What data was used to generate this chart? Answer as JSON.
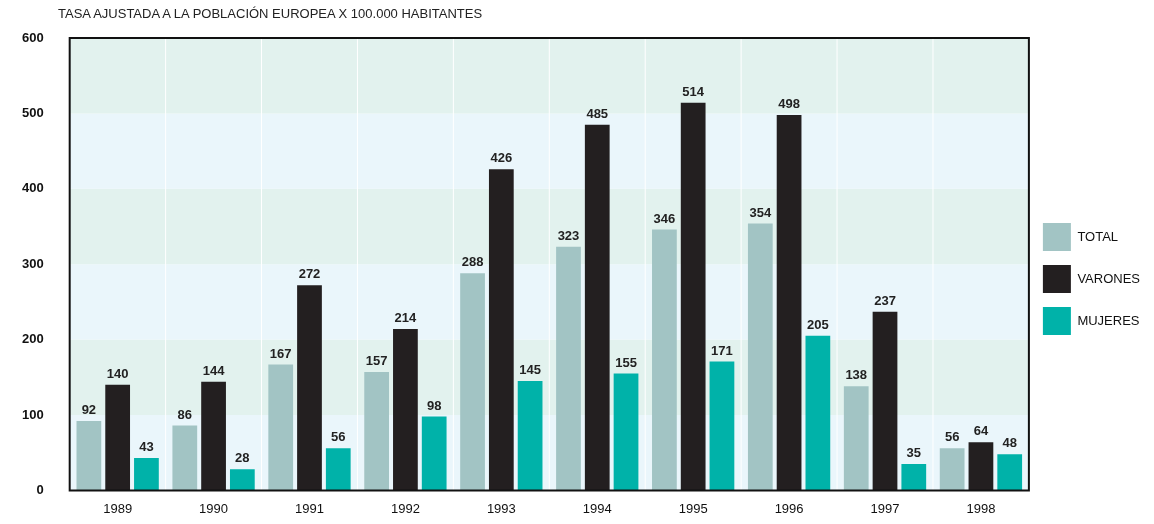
{
  "chart_data": {
    "type": "bar",
    "title": "TASA AJUSTADA A LA POBLACIÓN EUROPEA X 100.000 HABITANTES",
    "categories": [
      "1989",
      "1990",
      "1991",
      "1992",
      "1993",
      "1994",
      "1995",
      "1996",
      "1997",
      "1998"
    ],
    "series": [
      {
        "name": "TOTAL",
        "color": "#a2c4c4",
        "values": [
          92,
          86,
          167,
          157,
          288,
          323,
          346,
          354,
          138,
          56
        ]
      },
      {
        "name": "VARONES",
        "color": "#231f20",
        "values": [
          140,
          144,
          272,
          214,
          426,
          485,
          514,
          498,
          237,
          64
        ]
      },
      {
        "name": "MUJERES",
        "color": "#00b2a9",
        "values": [
          43,
          28,
          56,
          98,
          145,
          155,
          171,
          205,
          35,
          48
        ]
      }
    ],
    "ylim": [
      0,
      600
    ],
    "yticks": [
      0,
      100,
      200,
      300,
      400,
      500,
      600
    ],
    "bands": [
      {
        "axis": "y",
        "from": 0,
        "to": 100,
        "color": "#eaf6fb"
      },
      {
        "axis": "y",
        "from": 100,
        "to": 200,
        "color": "#e2f2ee"
      },
      {
        "axis": "y",
        "from": 200,
        "to": 300,
        "color": "#eaf6fb"
      },
      {
        "axis": "y",
        "from": 300,
        "to": 400,
        "color": "#e2f2ee"
      },
      {
        "axis": "y",
        "from": 400,
        "to": 500,
        "color": "#eaf6fb"
      },
      {
        "axis": "y",
        "from": 500,
        "to": 600,
        "color": "#e2f2ee"
      }
    ],
    "grid": "x",
    "legend": "right",
    "data_labels": true
  }
}
